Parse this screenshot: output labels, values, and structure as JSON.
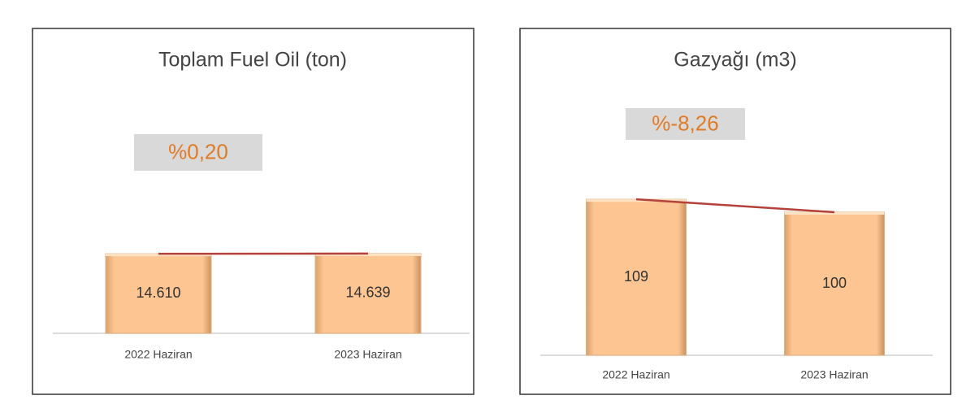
{
  "chart_data": [
    {
      "type": "bar",
      "title": "Toplam Fuel Oil (ton)",
      "annotation": "%0,20",
      "categories": [
        "2022 Haziran",
        "2023 Haziran"
      ],
      "values": [
        14610,
        14639
      ],
      "value_labels": [
        "14.610",
        "14.639"
      ],
      "color": "#fcc592",
      "line_color": "#b5413b",
      "ylim": [
        0,
        50000
      ]
    },
    {
      "type": "bar",
      "title": "Gazyağı (m3)",
      "annotation": "%-8,26",
      "categories": [
        "2022 Haziran",
        "2023 Haziran"
      ],
      "values": [
        109,
        100
      ],
      "color": "#fcc592",
      "line_color": "#b5413b",
      "ylim": [
        0,
        200
      ]
    }
  ]
}
